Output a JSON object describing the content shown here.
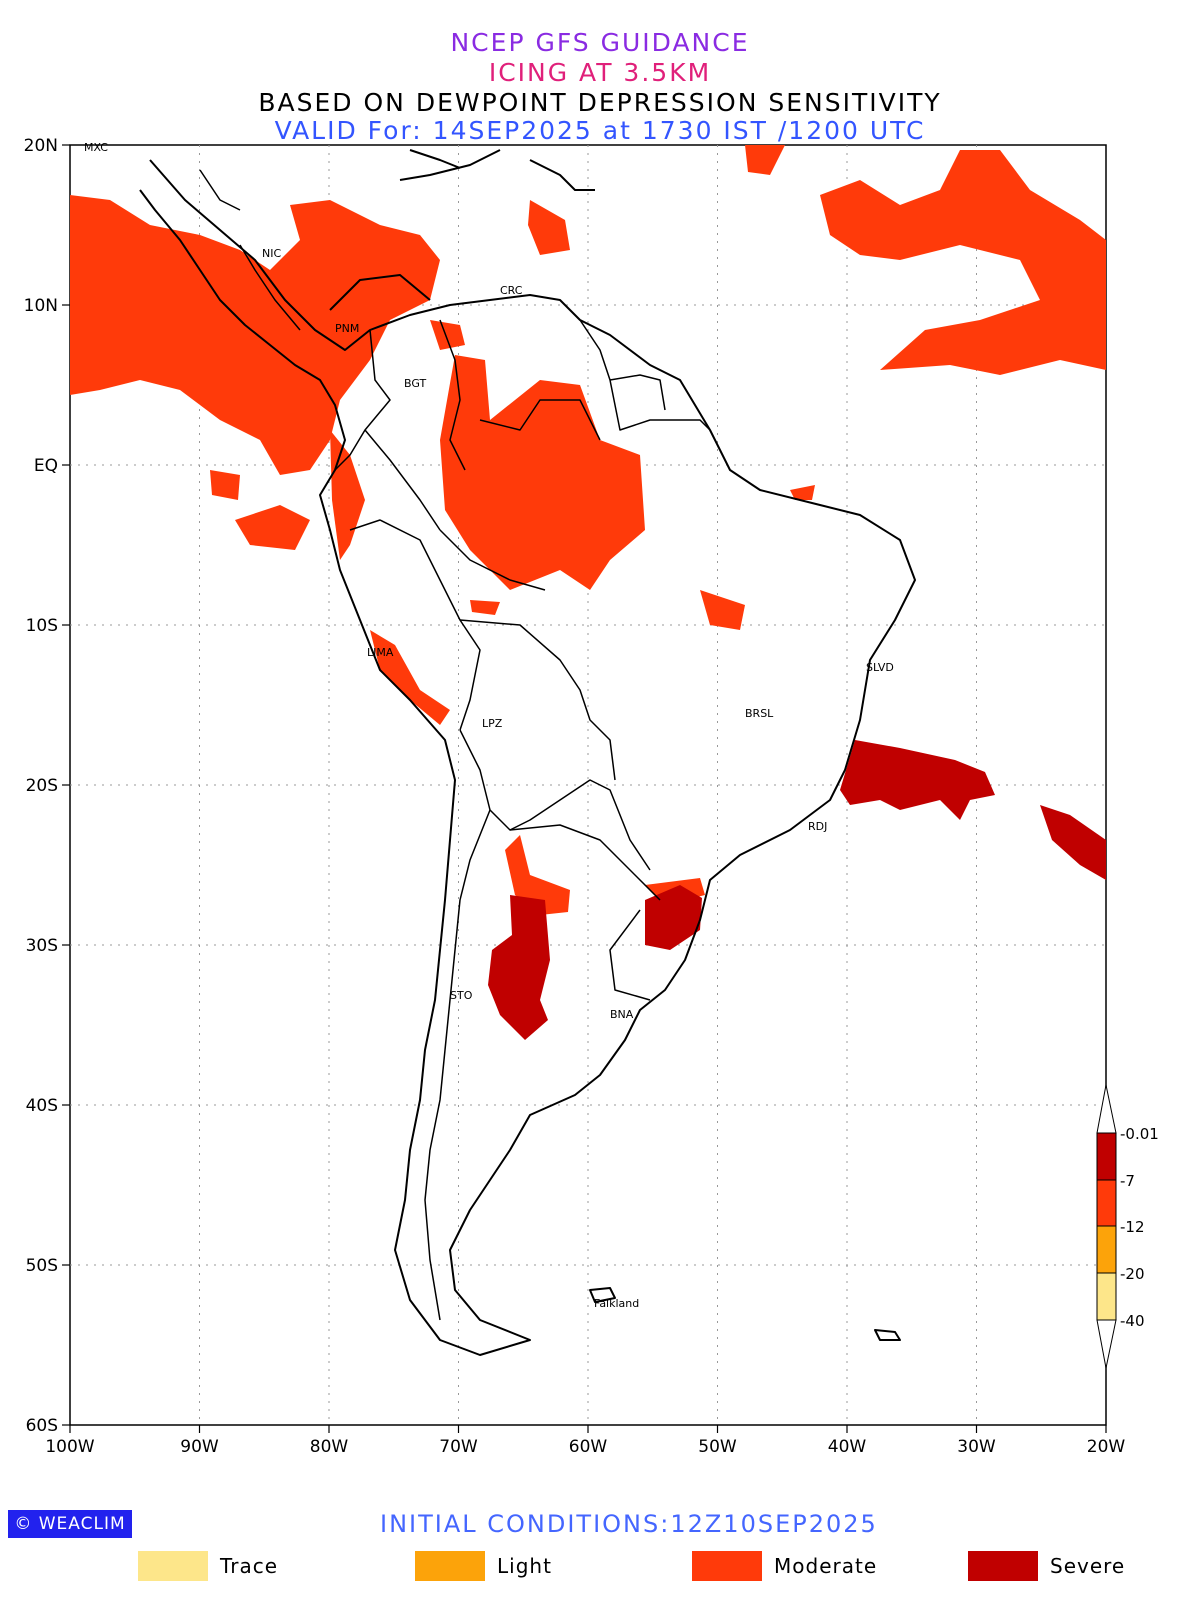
{
  "titles": {
    "line1": "NCEP GFS GUIDANCE",
    "line2": "ICING AT 3.5KM",
    "line3": "BASED ON DEWPOINT DEPRESSION SENSITIVITY",
    "line4": "VALID For: 14SEP2025 at 1730 IST /1200 UTC"
  },
  "colors": {
    "trace": "#fde68a",
    "light": "#fca30a",
    "moderate": "#ff3a0a",
    "severe": "#c00000",
    "title1": "#8a2be2",
    "title2": "#e0207a",
    "title4": "#3355ff"
  },
  "axes": {
    "lat_ticks": [
      "20N",
      "10N",
      "EQ",
      "10S",
      "20S",
      "30S",
      "40S",
      "50S",
      "60S"
    ],
    "lon_ticks": [
      "100W",
      "90W",
      "80W",
      "70W",
      "60W",
      "50W",
      "40W",
      "30W",
      "20W"
    ]
  },
  "cities": [
    "MXC",
    "NIC",
    "CRC",
    "PNM",
    "BGT",
    "LIMA",
    "LPZ",
    "BRSL",
    "SLVD",
    "RDJ",
    "STO",
    "BNA",
    "Falkland"
  ],
  "colorbar": {
    "labels": [
      "-0.01",
      "-7",
      "-12",
      "-20",
      "-40"
    ]
  },
  "logo": "WEACLIM",
  "initial_conditions": "INITIAL CONDITIONS:12Z10SEP2025",
  "legend": [
    {
      "label": "Trace",
      "color": "#fde68a"
    },
    {
      "label": "Light",
      "color": "#fca30a"
    },
    {
      "label": "Moderate",
      "color": "#ff3a0a"
    },
    {
      "label": "Severe",
      "color": "#c00000"
    }
  ]
}
